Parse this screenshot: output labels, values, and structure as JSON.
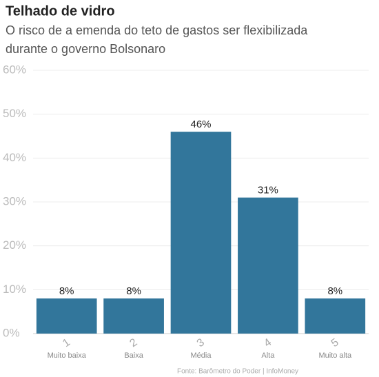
{
  "chart_data": {
    "type": "bar",
    "title": "Telhado de vidro",
    "subtitle": [
      "O risco de a emenda do teto de gastos ser flexibilizada",
      "durante o governo Bolsonaro"
    ],
    "categories": [
      "1",
      "2",
      "3",
      "4",
      "5"
    ],
    "category_labels": [
      "Muito baixa",
      "Baixa",
      "Média",
      "Alta",
      "Muito alta"
    ],
    "values": [
      8,
      8,
      46,
      31,
      8
    ],
    "value_labels": [
      "8%",
      "8%",
      "46%",
      "31%",
      "8%"
    ],
    "color": "#32769b",
    "ylim": [
      0,
      60
    ],
    "yticks": [
      {
        "value": 0,
        "label": "0%"
      },
      {
        "value": 10,
        "label": "10%"
      },
      {
        "value": 20,
        "label": "20%"
      },
      {
        "value": 30,
        "label": "30%"
      },
      {
        "value": 40,
        "label": "40%"
      },
      {
        "value": 50,
        "label": "50%"
      },
      {
        "value": 60,
        "label": "60%"
      }
    ],
    "grid": true,
    "source": "Fonte: Barômetro do Poder | InfoMoney"
  }
}
